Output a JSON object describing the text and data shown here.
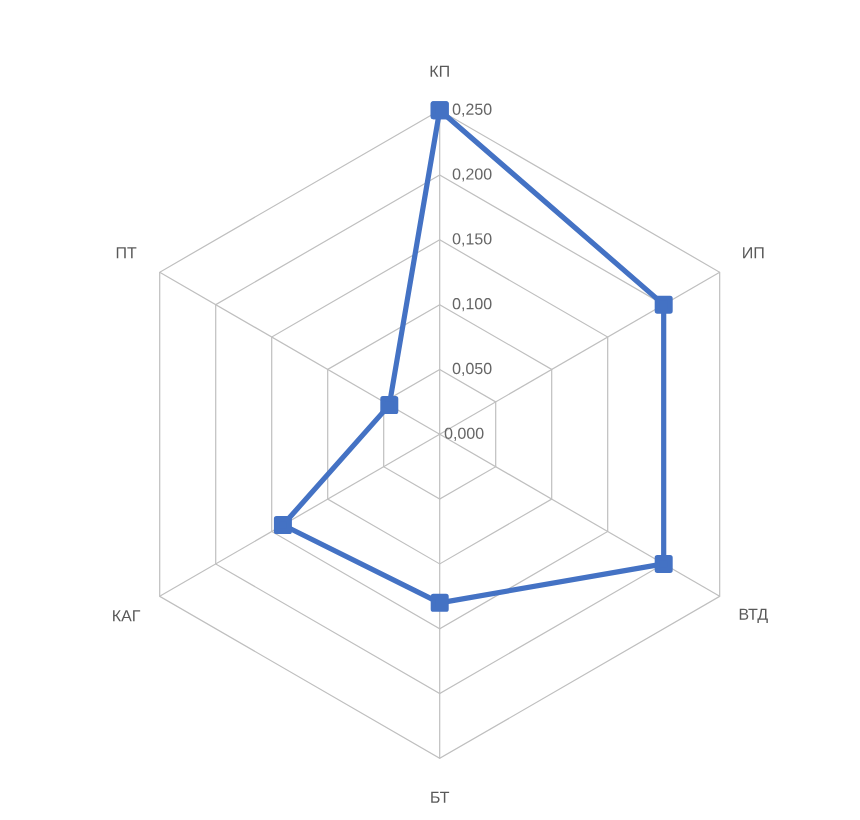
{
  "chart_data": {
    "type": "radar",
    "categories": [
      "КП",
      "ИП",
      "ВТД",
      "БТ",
      "КАГ",
      "ПТ"
    ],
    "series": [
      {
        "color": "#4472c4",
        "values": [
          0.25,
          0.2,
          0.2,
          0.13,
          0.14,
          0.045
        ]
      }
    ],
    "ylim": [
      0,
      0.25
    ],
    "yticks": [
      {
        "value": 0,
        "label": "0,000"
      },
      {
        "value": 0.05,
        "label": "0,050"
      },
      {
        "value": 0.1,
        "label": "0,100"
      },
      {
        "value": 0.15,
        "label": "0,150"
      },
      {
        "value": 0.2,
        "label": "0,200"
      },
      {
        "value": 0.25,
        "label": "0,250"
      }
    ],
    "grid": true,
    "marker": "square"
  }
}
